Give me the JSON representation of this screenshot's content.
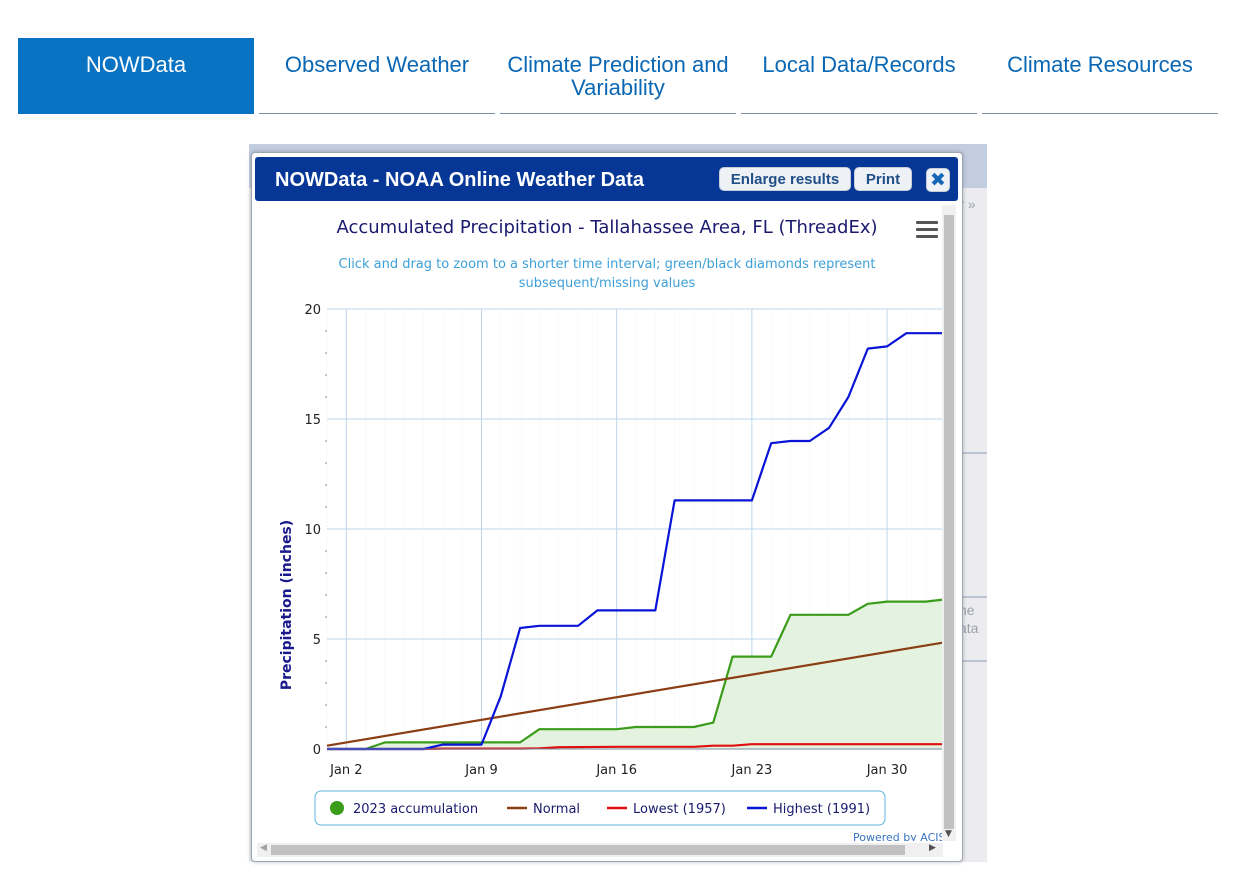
{
  "tabs": [
    {
      "label": "NOWData",
      "active": true
    },
    {
      "label": "Observed Weather",
      "active": false
    },
    {
      "label": "Climate Prediction and Variability",
      "active": false
    },
    {
      "label": "Local Data/Records",
      "active": false
    },
    {
      "label": "Climate Resources",
      "active": false
    }
  ],
  "background": {
    "fragment_1": "y »",
    "fragment_2": "ne",
    "fragment_3": "ata"
  },
  "dialog": {
    "title": "NOWData - NOAA Online Weather Data",
    "enlarge_label": "Enlarge results",
    "print_label": "Print",
    "close_glyph": "✖"
  },
  "chart_data": {
    "type": "line",
    "title": "Accumulated Precipitation - Tallahassee Area, FL (ThreadEx)",
    "subtitle_line1": "Click and drag to zoom to a shorter time interval; green/black diamonds represent",
    "subtitle_line2": "subsequent/missing values",
    "xlabel": "",
    "ylabel": "Precipitation (inches)",
    "ylim": [
      0,
      20
    ],
    "yticks": [
      0,
      5,
      10,
      15,
      20
    ],
    "xlim": [
      1,
      33
    ],
    "xticks": [
      {
        "day": 2,
        "label": "Jan 2"
      },
      {
        "day": 9,
        "label": "Jan 9"
      },
      {
        "day": 16,
        "label": "Jan 16"
      },
      {
        "day": 23,
        "label": "Jan 23"
      },
      {
        "day": 30,
        "label": "Jan 30"
      }
    ],
    "grid": true,
    "legend_position": "bottom",
    "credits": "Powered by ACIS",
    "series": [
      {
        "name": "2023 accumulation",
        "color": "#3a9c1a",
        "fill": "#e4f3df",
        "marker": "circle",
        "points": [
          [
            1,
            0
          ],
          [
            2,
            0
          ],
          [
            3,
            0
          ],
          [
            4,
            0.3
          ],
          [
            5,
            0.3
          ],
          [
            6,
            0.3
          ],
          [
            7,
            0.3
          ],
          [
            8,
            0.3
          ],
          [
            9,
            0.3
          ],
          [
            10,
            0.3
          ],
          [
            11,
            0.3
          ],
          [
            12,
            0.9
          ],
          [
            13,
            0.9
          ],
          [
            14,
            0.9
          ],
          [
            15,
            0.9
          ],
          [
            16,
            0.9
          ],
          [
            17,
            1.0
          ],
          [
            18,
            1.0
          ],
          [
            19,
            1.0
          ],
          [
            20,
            1.0
          ],
          [
            21,
            1.2
          ],
          [
            22,
            4.2
          ],
          [
            23,
            4.2
          ],
          [
            24,
            4.2
          ],
          [
            25,
            6.1
          ],
          [
            26,
            6.1
          ],
          [
            27,
            6.1
          ],
          [
            28,
            6.1
          ],
          [
            29,
            6.6
          ],
          [
            30,
            6.7
          ],
          [
            31,
            6.7
          ],
          [
            32,
            6.7
          ],
          [
            33,
            6.8
          ]
        ]
      },
      {
        "name": "Normal",
        "color": "#8b3d14",
        "marker": "line",
        "points": [
          [
            1,
            0.15
          ],
          [
            33,
            4.85
          ]
        ]
      },
      {
        "name": "Lowest (1957)",
        "color": "#e01010",
        "marker": "line",
        "points": [
          [
            1,
            0
          ],
          [
            6,
            0
          ],
          [
            7,
            0.02
          ],
          [
            11,
            0.02
          ],
          [
            12,
            0.03
          ],
          [
            13,
            0.08
          ],
          [
            16,
            0.1
          ],
          [
            20,
            0.1
          ],
          [
            21,
            0.15
          ],
          [
            22,
            0.15
          ],
          [
            23,
            0.22
          ],
          [
            33,
            0.22
          ]
        ]
      },
      {
        "name": "Highest (1991)",
        "color": "#0a14d6",
        "marker": "line",
        "points": [
          [
            1,
            0
          ],
          [
            5,
            0
          ],
          [
            6,
            0
          ],
          [
            7,
            0.2
          ],
          [
            8,
            0.2
          ],
          [
            9,
            0.2
          ],
          [
            10,
            2.4
          ],
          [
            11,
            5.5
          ],
          [
            12,
            5.6
          ],
          [
            13,
            5.6
          ],
          [
            14,
            5.6
          ],
          [
            15,
            6.3
          ],
          [
            16,
            6.3
          ],
          [
            17,
            6.3
          ],
          [
            18,
            6.3
          ],
          [
            19,
            11.3
          ],
          [
            20,
            11.3
          ],
          [
            21,
            11.3
          ],
          [
            22,
            11.3
          ],
          [
            23,
            11.3
          ],
          [
            24,
            13.9
          ],
          [
            25,
            14.0
          ],
          [
            26,
            14.0
          ],
          [
            27,
            14.6
          ],
          [
            28,
            16.0
          ],
          [
            29,
            18.2
          ],
          [
            30,
            18.3
          ],
          [
            31,
            18.9
          ],
          [
            32,
            18.9
          ],
          [
            33,
            18.9
          ]
        ]
      }
    ]
  }
}
